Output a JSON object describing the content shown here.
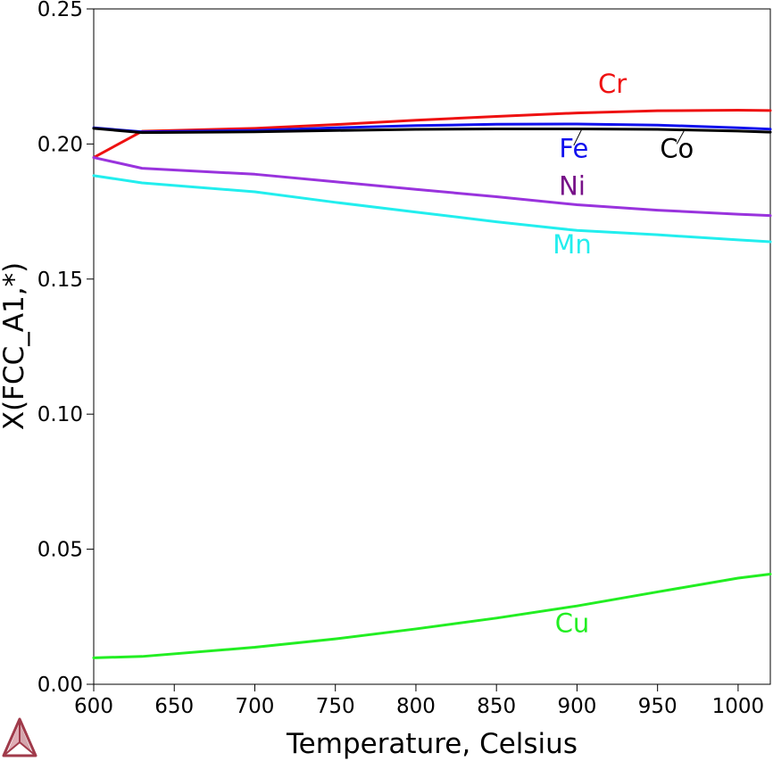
{
  "chart_data": {
    "type": "line",
    "title": "",
    "xlabel": "Temperature, Celsius",
    "ylabel": "X(FCC_A1,*)",
    "xlim": [
      600,
      1020
    ],
    "ylim": [
      0,
      0.25
    ],
    "xticks": [
      600,
      650,
      700,
      750,
      800,
      850,
      900,
      950,
      1000
    ],
    "xtick_labels": [
      "600",
      "650",
      "700",
      "750",
      "800",
      "850",
      "900",
      "950",
      "1000"
    ],
    "yticks": [
      0,
      0.05,
      0.1,
      0.15,
      0.2,
      0.25
    ],
    "ytick_labels": [
      "0.00",
      "0.05",
      "0.10",
      "0.15",
      "0.20",
      "0.25"
    ],
    "grid": false,
    "legend": "none",
    "series": [
      {
        "name": "Cr",
        "color": "#ee1111",
        "label_x": 922,
        "label_y": 0.219,
        "points": [
          [
            600,
            0.195
          ],
          [
            630,
            0.2047
          ],
          [
            700,
            0.2058
          ],
          [
            750,
            0.2072
          ],
          [
            800,
            0.2088
          ],
          [
            850,
            0.2102
          ],
          [
            900,
            0.2115
          ],
          [
            950,
            0.2123
          ],
          [
            1000,
            0.2125
          ],
          [
            1020,
            0.2124
          ]
        ]
      },
      {
        "name": "Fe",
        "color": "#1111ee",
        "label_x": 898,
        "label_y": 0.195,
        "leader": [
          [
            898,
            0.1995
          ],
          [
            903,
            0.2055
          ]
        ],
        "points": [
          [
            600,
            0.206
          ],
          [
            630,
            0.2045
          ],
          [
            700,
            0.205
          ],
          [
            750,
            0.206
          ],
          [
            800,
            0.2068
          ],
          [
            850,
            0.2073
          ],
          [
            900,
            0.2074
          ],
          [
            950,
            0.207
          ],
          [
            1000,
            0.206
          ],
          [
            1020,
            0.2055
          ]
        ]
      },
      {
        "name": "Co",
        "color": "#000000",
        "label_x": 962,
        "label_y": 0.195,
        "leader": [
          [
            962,
            0.2
          ],
          [
            967,
            0.2055
          ]
        ],
        "points": [
          [
            600,
            0.2058
          ],
          [
            630,
            0.2042
          ],
          [
            700,
            0.2045
          ],
          [
            750,
            0.205
          ],
          [
            800,
            0.2054
          ],
          [
            850,
            0.2056
          ],
          [
            900,
            0.2056
          ],
          [
            950,
            0.2054
          ],
          [
            1000,
            0.2048
          ],
          [
            1020,
            0.2044
          ]
        ]
      },
      {
        "name": "Ni",
        "color": "#9933dd",
        "label_color": "#771188",
        "label_x": 897,
        "label_y": 0.1812,
        "points": [
          [
            600,
            0.195
          ],
          [
            630,
            0.191
          ],
          [
            700,
            0.1888
          ],
          [
            750,
            0.186
          ],
          [
            800,
            0.1832
          ],
          [
            850,
            0.1805
          ],
          [
            900,
            0.1775
          ],
          [
            950,
            0.1755
          ],
          [
            1000,
            0.174
          ],
          [
            1020,
            0.1735
          ]
        ]
      },
      {
        "name": "Mn",
        "color": "#22eeee",
        "label_x": 897,
        "label_y": 0.1595,
        "points": [
          [
            600,
            0.1883
          ],
          [
            630,
            0.1856
          ],
          [
            700,
            0.1823
          ],
          [
            750,
            0.1784
          ],
          [
            800,
            0.1748
          ],
          [
            850,
            0.1712
          ],
          [
            900,
            0.168
          ],
          [
            950,
            0.1664
          ],
          [
            1000,
            0.1645
          ],
          [
            1020,
            0.1638
          ]
        ]
      },
      {
        "name": "Cu",
        "color": "#22ee22",
        "label_x": 897,
        "label_y": 0.0193,
        "points": [
          [
            600,
            0.0098
          ],
          [
            630,
            0.0103
          ],
          [
            700,
            0.0137
          ],
          [
            750,
            0.0168
          ],
          [
            800,
            0.0205
          ],
          [
            850,
            0.0245
          ],
          [
            900,
            0.029
          ],
          [
            950,
            0.0342
          ],
          [
            1000,
            0.0393
          ],
          [
            1020,
            0.0408
          ]
        ]
      }
    ]
  },
  "logo": {
    "name": "thermo-calc-logo",
    "color": "#a03a4a"
  }
}
